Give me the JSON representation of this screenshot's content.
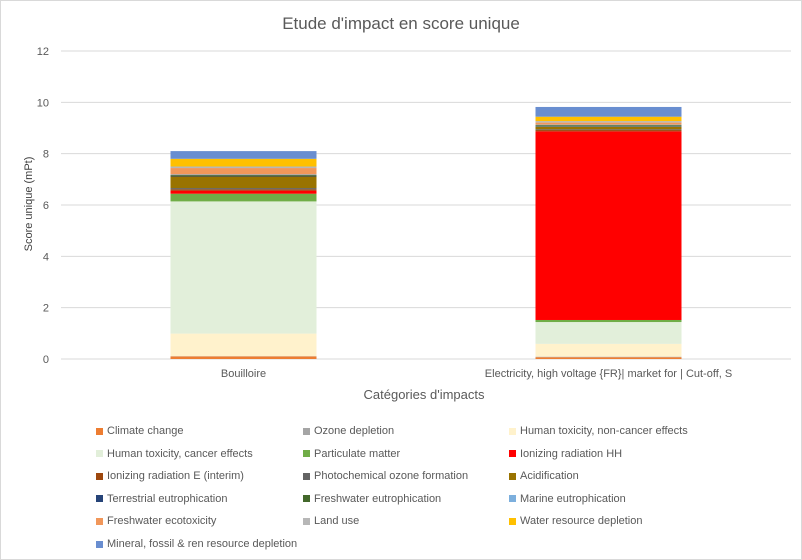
{
  "chart_data": {
    "type": "bar",
    "stacked": true,
    "title": "Etude d'impact en score unique",
    "xlabel": "Catégories d'impacts",
    "ylabel": "Score unique (mPt)",
    "ylim": [
      0,
      12
    ],
    "yticks": [
      0,
      2,
      4,
      6,
      8,
      10,
      12
    ],
    "grid": true,
    "legend_position": "bottom",
    "categories": [
      "Bouilloire",
      "Electricity, high voltage {FR}| market for | Cut-off, S"
    ],
    "series": [
      {
        "name": "Climate change",
        "color": "#ed7d31",
        "values": [
          0.1,
          0.07
        ]
      },
      {
        "name": "Ozone depletion",
        "color": "#a5a5a5",
        "values": [
          0.01,
          0.02
        ]
      },
      {
        "name": "Human toxicity, non-cancer effects",
        "color": "#fff2cc",
        "values": [
          0.88,
          0.5
        ]
      },
      {
        "name": "Human toxicity, cancer effects",
        "color": "#e2efda",
        "values": [
          5.15,
          0.85
        ]
      },
      {
        "name": "Particulate matter",
        "color": "#70ad47",
        "values": [
          0.3,
          0.08
        ]
      },
      {
        "name": "Ionizing radiation HH",
        "color": "#ff0000",
        "values": [
          0.12,
          7.35
        ]
      },
      {
        "name": "Ionizing radiation E (interim)",
        "color": "#9e480e",
        "values": [
          0.05,
          0.05
        ]
      },
      {
        "name": "Photochemical ozone formation",
        "color": "#636363",
        "values": [
          0.05,
          0.03
        ]
      },
      {
        "name": "Acidification",
        "color": "#997300",
        "values": [
          0.45,
          0.1
        ]
      },
      {
        "name": "Terrestrial eutrophication",
        "color": "#264478",
        "values": [
          0.03,
          0.02
        ]
      },
      {
        "name": "Freshwater eutrophication",
        "color": "#43682b",
        "values": [
          0.03,
          0.04
        ]
      },
      {
        "name": "Marine eutrophication",
        "color": "#7cafdd",
        "values": [
          0.02,
          0.02
        ]
      },
      {
        "name": "Freshwater ecotoxicity",
        "color": "#f1975a",
        "values": [
          0.25,
          0.08
        ]
      },
      {
        "name": "Land use",
        "color": "#b7b7b7",
        "values": [
          0.06,
          0.06
        ]
      },
      {
        "name": "Water resource depletion",
        "color": "#ffc000",
        "values": [
          0.3,
          0.17
        ]
      },
      {
        "name": "Mineral, fossil & ren resource depletion",
        "color": "#698ed0",
        "values": [
          0.3,
          0.38
        ]
      }
    ]
  }
}
